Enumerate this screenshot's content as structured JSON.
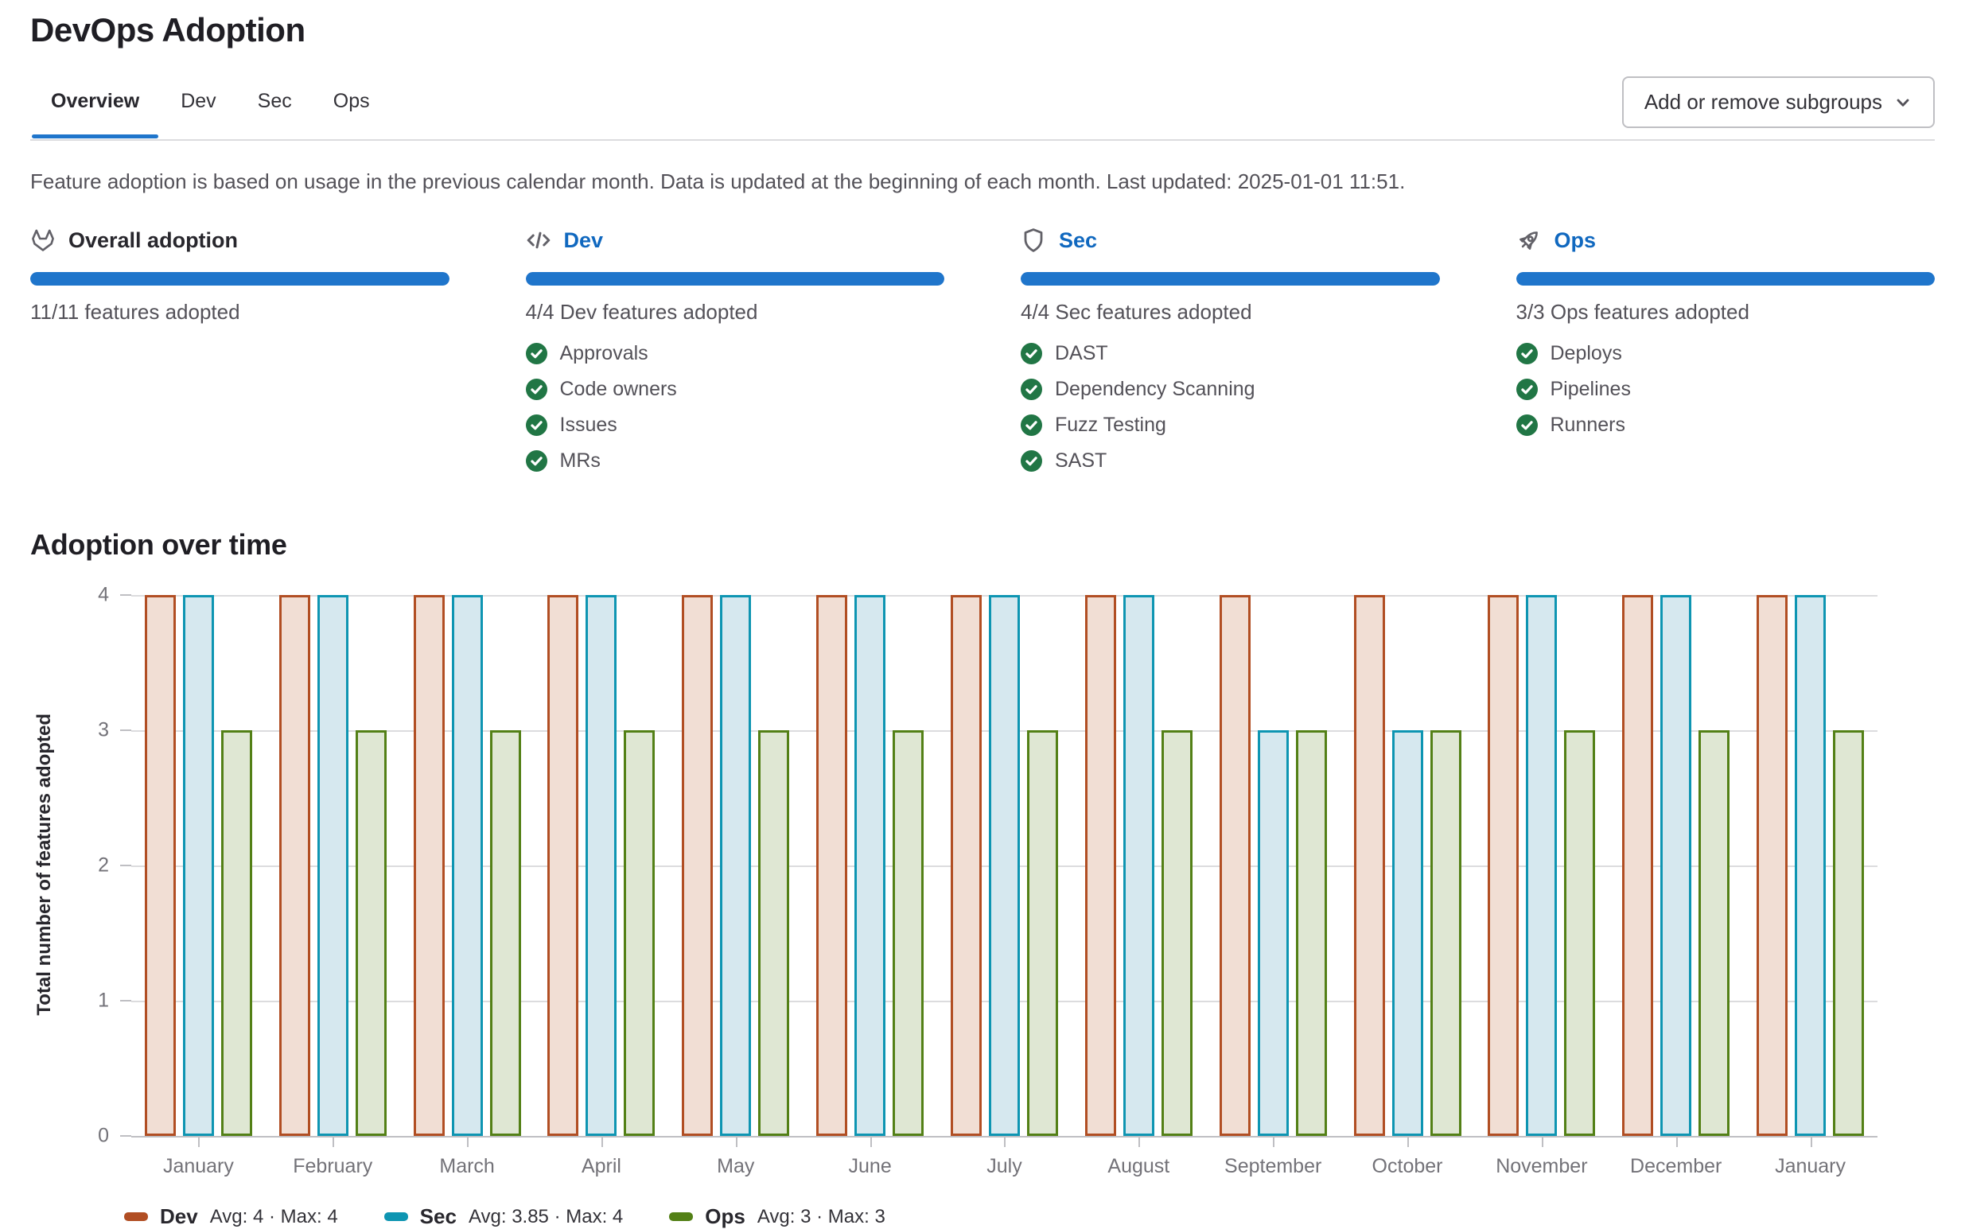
{
  "page": {
    "title": "DevOps Adoption"
  },
  "tabs": [
    {
      "label": "Overview",
      "active": true
    },
    {
      "label": "Dev",
      "active": false
    },
    {
      "label": "Sec",
      "active": false
    },
    {
      "label": "Ops",
      "active": false
    }
  ],
  "toolbar": {
    "subgroups_button_label": "Add or remove subgroups"
  },
  "description": "Feature adoption is based on usage in the previous calendar month. Data is updated at the beginning of each month. Last updated: 2025-01-01 11:51.",
  "colors": {
    "accent_blue": "#1f75cb",
    "link_blue": "#1068bf",
    "check_green": "#217645",
    "dev_border": "#b14e23",
    "dev_fill": "#f1ded4",
    "sec_border": "#0e95b2",
    "sec_fill": "#d6e8ef",
    "ops_border": "#538016",
    "ops_fill": "#dfe7d3"
  },
  "cards": [
    {
      "icon": "tanuki-icon",
      "title": "Overall adoption",
      "is_link": false,
      "progress": 100,
      "summary": "11/11 features adopted",
      "features": []
    },
    {
      "icon": "code-icon",
      "title": "Dev",
      "is_link": true,
      "progress": 100,
      "summary": "4/4 Dev features adopted",
      "features": [
        "Approvals",
        "Code owners",
        "Issues",
        "MRs"
      ]
    },
    {
      "icon": "shield-icon",
      "title": "Sec",
      "is_link": true,
      "progress": 100,
      "summary": "4/4 Sec features adopted",
      "features": [
        "DAST",
        "Dependency Scanning",
        "Fuzz Testing",
        "SAST"
      ]
    },
    {
      "icon": "rocket-icon",
      "title": "Ops",
      "is_link": true,
      "progress": 100,
      "summary": "3/3 Ops features adopted",
      "features": [
        "Deploys",
        "Pipelines",
        "Runners"
      ]
    }
  ],
  "section": {
    "title": "Adoption over time"
  },
  "chart_data": {
    "type": "bar",
    "title": "Adoption over time",
    "xlabel": "",
    "ylabel": "Total number of features adopted",
    "ylim": [
      0,
      4
    ],
    "yticks": [
      0,
      1,
      2,
      3,
      4
    ],
    "grid": true,
    "legend_position": "bottom",
    "categories": [
      "January",
      "February",
      "March",
      "April",
      "May",
      "June",
      "July",
      "August",
      "September",
      "October",
      "November",
      "December",
      "January"
    ],
    "series": [
      {
        "name": "Dev",
        "border_color": "#b14e23",
        "fill_color": "#f1ded4",
        "values": [
          4,
          4,
          4,
          4,
          4,
          4,
          4,
          4,
          4,
          4,
          4,
          4,
          4
        ],
        "legend_stats": "Avg: 4 · Max: 4"
      },
      {
        "name": "Sec",
        "border_color": "#0e95b2",
        "fill_color": "#d6e8ef",
        "values": [
          4,
          4,
          4,
          4,
          4,
          4,
          4,
          4,
          3,
          3,
          4,
          4,
          4
        ],
        "legend_stats": "Avg: 3.85 · Max: 4"
      },
      {
        "name": "Ops",
        "border_color": "#538016",
        "fill_color": "#dfe7d3",
        "values": [
          3,
          3,
          3,
          3,
          3,
          3,
          3,
          3,
          3,
          3,
          3,
          3,
          3
        ],
        "legend_stats": "Avg: 3 · Max: 3"
      }
    ]
  }
}
